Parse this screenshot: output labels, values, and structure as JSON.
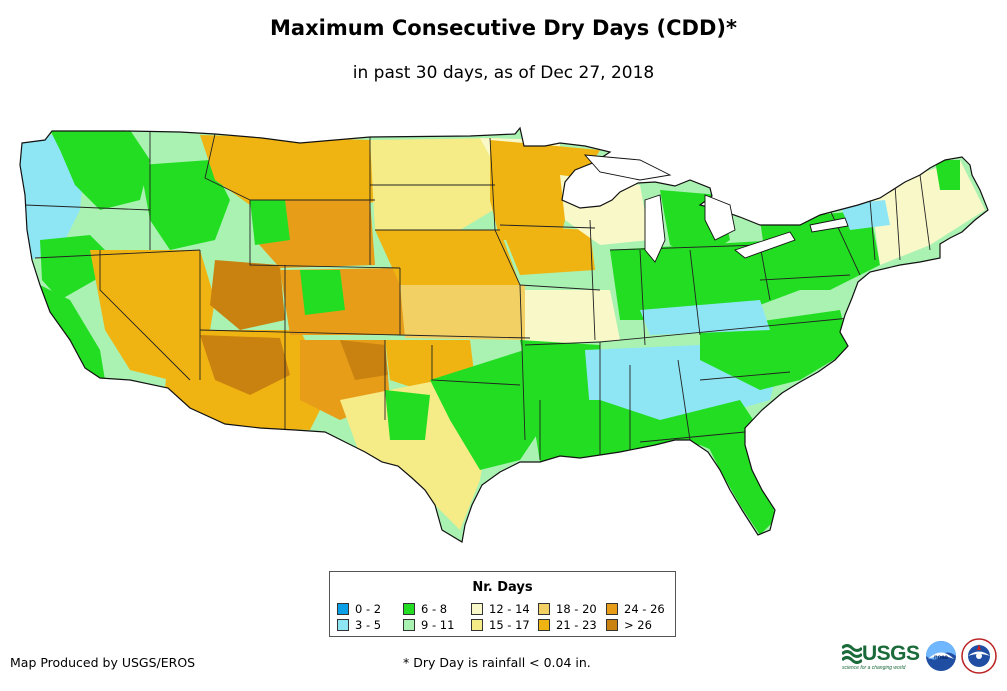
{
  "title": "Maximum Consecutive Dry Days (CDD)*",
  "subtitle": "in past 30 days, as of Dec 27, 2018",
  "legend": {
    "title": "Nr. Days",
    "items": [
      {
        "label": "0 - 2",
        "color": "#0a9fe6"
      },
      {
        "label": "3 - 5",
        "color": "#8ee6f5"
      },
      {
        "label": "6 - 8",
        "color": "#22dd22"
      },
      {
        "label": "9 - 11",
        "color": "#aaf2b2"
      },
      {
        "label": "12 - 14",
        "color": "#f9f8c8"
      },
      {
        "label": "15 - 17",
        "color": "#f5ec88"
      },
      {
        "label": "18 - 20",
        "color": "#f2d064"
      },
      {
        "label": "21 - 23",
        "color": "#f0b412"
      },
      {
        "label": "24 - 26",
        "color": "#e89d18"
      },
      {
        "label": "> 26",
        "color": "#c98210"
      }
    ]
  },
  "credit": "Map Produced by USGS/EROS",
  "footnote": "* Dry Day is rainfall < 0.04 in.",
  "logos": {
    "usgs": "USGS",
    "usgs_tagline": "science for a changing world",
    "noaa": "noaa"
  }
}
